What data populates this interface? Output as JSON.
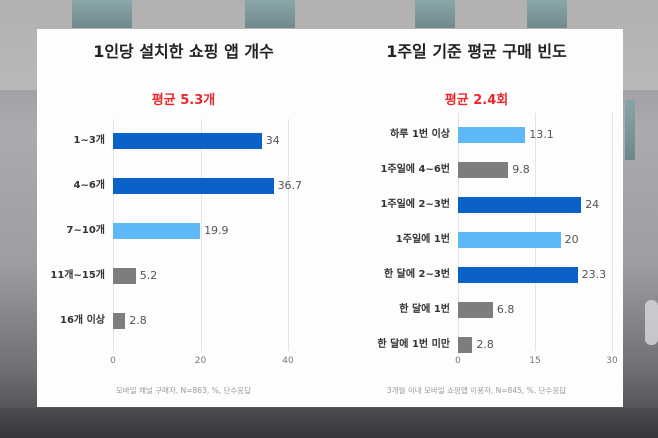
{
  "colors": {
    "dark_blue": "#0a62c9",
    "light_blue": "#5eb7f7",
    "gray": "#7d7d7d",
    "average_red": "#e8282b",
    "title_text": "#222222"
  },
  "chart_data": [
    {
      "type": "bar",
      "orientation": "horizontal",
      "title": "1인당 설치한 쇼핑 앱 개수",
      "subtitle": "평균 5.3개",
      "categories": [
        "1~3개",
        "4~6개",
        "7~10개",
        "11개~15개",
        "16개 이상"
      ],
      "values": [
        34,
        36.7,
        19.9,
        5.2,
        2.8
      ],
      "value_labels": [
        "34",
        "36.7",
        "19.9",
        "5.2",
        "2.8"
      ],
      "bar_colors": [
        "dark_blue",
        "dark_blue",
        "light_blue",
        "gray",
        "gray"
      ],
      "xlim": [
        0,
        40
      ],
      "xticks": [
        "0",
        "20",
        "40"
      ],
      "grid": true,
      "note": "모바일 채널 구매자, N=863, %, 단수응답",
      "xlabel": "",
      "ylabel": ""
    },
    {
      "type": "bar",
      "orientation": "horizontal",
      "title": "1주일 기준 평균 구매 빈도",
      "subtitle": "평균 2.4회",
      "categories": [
        "하루 1번 이상",
        "1주일에 4~6번",
        "1주일에 2~3번",
        "1주일에 1번",
        "한 달에 2~3번",
        "한 달에 1번",
        "한 달에 1번 미만"
      ],
      "values": [
        13.1,
        9.8,
        24,
        20,
        23.3,
        6.8,
        2.8
      ],
      "value_labels": [
        "13.1",
        "9.8",
        "24",
        "20",
        "23.3",
        "6.8",
        "2.8"
      ],
      "bar_colors": [
        "light_blue",
        "gray",
        "dark_blue",
        "light_blue",
        "dark_blue",
        "gray",
        "gray"
      ],
      "xlim": [
        0,
        30
      ],
      "xticks": [
        "0",
        "15",
        "30"
      ],
      "grid": true,
      "note": "3개월 이내 모바일 쇼핑앱 이용자, N=845, %, 단수응답",
      "xlabel": "",
      "ylabel": ""
    }
  ]
}
